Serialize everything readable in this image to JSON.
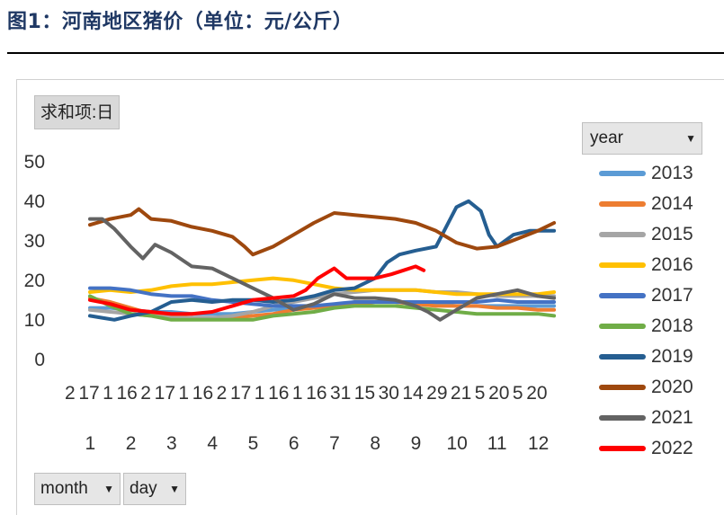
{
  "title": "图1：河南地区猪价（单位：元/公斤）",
  "value_field_button": "求和项:日",
  "year_filter": {
    "label": "year",
    "icon": "dropdown-arrow-icon"
  },
  "month_filter": {
    "label": "month",
    "icon": "dropdown-arrow-icon"
  },
  "day_filter": {
    "label": "day",
    "icon": "dropdown-arrow-icon"
  },
  "chart_data": {
    "type": "line",
    "title": "",
    "xlabel": "",
    "ylabel": "",
    "ylim": [
      0,
      50
    ],
    "y_ticks": [
      "0",
      "10",
      "20",
      "30",
      "40",
      "50"
    ],
    "x_day_labels": [
      "2",
      "17",
      "1",
      "16",
      "2",
      "17",
      "1",
      "16",
      "2",
      "17",
      "1",
      "16",
      "1",
      "16",
      "31",
      "15",
      "30",
      "14",
      "29",
      "21",
      "5",
      "20",
      "5",
      "20"
    ],
    "x_month_labels": [
      "1",
      "2",
      "3",
      "4",
      "5",
      "6",
      "7",
      "8",
      "9",
      "10",
      "11",
      "12"
    ],
    "x_range_months": [
      1,
      12.5
    ],
    "legend_title": "year",
    "legend_position": "right",
    "series": [
      {
        "name": "2013",
        "color": "#5b9bd5",
        "x": [
          1,
          1.5,
          2,
          2.5,
          3,
          3.5,
          4,
          4.5,
          5,
          5.5,
          6,
          6.5,
          7,
          7.5,
          8,
          8.5,
          9,
          9.5,
          10,
          10.5,
          11,
          11.5,
          12,
          12.4
        ],
        "values": [
          13.5,
          13.5,
          13,
          12.5,
          12.5,
          12,
          12,
          12,
          12.5,
          13,
          13.5,
          14,
          14,
          14.5,
          15,
          15,
          14.5,
          14.5,
          14,
          14,
          14,
          14,
          14,
          14
        ]
      },
      {
        "name": "2014",
        "color": "#ed7d31",
        "x": [
          1,
          1.5,
          2,
          2.5,
          3,
          3.5,
          4,
          4.5,
          5,
          5.5,
          6,
          6.5,
          7,
          7.5,
          8,
          8.5,
          9,
          9.5,
          10,
          10.5,
          11,
          11.5,
          12,
          12.4
        ],
        "values": [
          16,
          15,
          13.5,
          12,
          11.5,
          11,
          11,
          11,
          11.5,
          12,
          13,
          13.5,
          14,
          14.5,
          15,
          15,
          14.5,
          14,
          14,
          14,
          13.5,
          13.5,
          13,
          13
        ]
      },
      {
        "name": "2015",
        "color": "#a5a5a5",
        "x": [
          1,
          1.5,
          2,
          2.5,
          3,
          3.5,
          4,
          4.5,
          5,
          5.5,
          6,
          6.5,
          7,
          7.5,
          8,
          8.5,
          9,
          9.5,
          10,
          10.5,
          11,
          11.5,
          12,
          12.4
        ],
        "values": [
          13,
          12.5,
          12,
          11.5,
          11,
          11,
          11,
          11.5,
          12.5,
          14,
          15,
          16,
          17,
          17.5,
          18,
          18,
          18,
          17.5,
          17.5,
          17,
          16.5,
          16.5,
          16.5,
          16.5
        ]
      },
      {
        "name": "2016",
        "color": "#ffc000",
        "x": [
          1,
          1.5,
          2,
          2.5,
          3,
          3.5,
          4,
          4.5,
          5,
          5.5,
          6,
          6.5,
          7,
          7.5,
          8,
          8.5,
          9,
          9.5,
          10,
          10.5,
          11,
          11.5,
          12,
          12.4
        ],
        "values": [
          17.5,
          18,
          17.5,
          18,
          19,
          19.5,
          19.5,
          20,
          20.5,
          21,
          20.5,
          19.5,
          18.5,
          18,
          18,
          18,
          18,
          17.5,
          17,
          17,
          17,
          17,
          17,
          17.5
        ]
      },
      {
        "name": "2017",
        "color": "#4472c4",
        "x": [
          1,
          1.5,
          2,
          2.5,
          3,
          3.5,
          4,
          4.5,
          5,
          5.5,
          6,
          6.5,
          7,
          7.5,
          8,
          8.5,
          9,
          9.5,
          10,
          10.5,
          11,
          11.5,
          12,
          12.4
        ],
        "values": [
          18.5,
          18.5,
          18,
          17,
          16.5,
          16.5,
          15.5,
          15,
          14.5,
          14,
          14,
          14,
          14.5,
          15,
          15,
          15,
          15,
          15,
          15,
          15,
          15.5,
          15,
          15,
          15
        ]
      },
      {
        "name": "2018",
        "color": "#70ad47",
        "x": [
          1,
          1.5,
          2,
          2.5,
          3,
          3.5,
          4,
          4.5,
          5,
          5.5,
          6,
          6.5,
          7,
          7.5,
          8,
          8.5,
          9,
          9.5,
          10,
          10.5,
          11,
          11.5,
          12,
          12.4
        ],
        "values": [
          16.5,
          14,
          12,
          11.5,
          10.5,
          10.5,
          10.5,
          10.5,
          10.5,
          11.5,
          12,
          12.5,
          13.5,
          14,
          14,
          14,
          13.5,
          13,
          12.5,
          12,
          12,
          12,
          12,
          11.5
        ]
      },
      {
        "name": "2019",
        "color": "#255e91",
        "x": [
          1,
          1.3,
          1.6,
          2,
          2.5,
          3,
          3.5,
          4,
          4.5,
          5,
          5.5,
          6,
          6.5,
          7,
          7.5,
          8,
          8.3,
          8.6,
          9,
          9.5,
          9.8,
          10,
          10.3,
          10.6,
          10.8,
          11,
          11.4,
          11.8,
          12,
          12.4
        ],
        "values": [
          11.5,
          11,
          10.5,
          11.5,
          12.5,
          15,
          15.5,
          15,
          15.5,
          15.5,
          15,
          15.5,
          16.5,
          18,
          18.5,
          21,
          25,
          27,
          28,
          29,
          35,
          39,
          40.5,
          38,
          32,
          29,
          32,
          33,
          33,
          33
        ]
      },
      {
        "name": "2020",
        "color": "#9e480e",
        "x": [
          1,
          1.5,
          2,
          2.2,
          2.5,
          3,
          3.5,
          4,
          4.5,
          4.8,
          5,
          5.5,
          6,
          6.5,
          7,
          7.5,
          8,
          8.5,
          9,
          9.5,
          10,
          10.5,
          11,
          11.5,
          12,
          12.4
        ],
        "values": [
          34.5,
          36,
          37,
          38.5,
          36,
          35.5,
          34,
          33,
          31.5,
          29,
          27,
          29,
          32,
          35,
          37.5,
          37,
          36.5,
          36,
          35,
          33,
          30,
          28.5,
          29,
          31,
          33,
          35
        ]
      },
      {
        "name": "2021",
        "color": "#636363",
        "x": [
          1,
          1.3,
          1.6,
          2,
          2.3,
          2.6,
          3,
          3.5,
          4,
          4.5,
          5,
          5.5,
          6,
          6.5,
          7,
          7.5,
          8,
          8.5,
          9,
          9.3,
          9.6,
          10,
          10.5,
          11,
          11.5,
          12,
          12.4
        ],
        "values": [
          36,
          36,
          33.5,
          29,
          26,
          29.5,
          27.5,
          24,
          23.5,
          21,
          18.5,
          16,
          13,
          14.5,
          17,
          16,
          16,
          15.5,
          14,
          12.5,
          10.5,
          13,
          16,
          17,
          18,
          16.5,
          16
        ]
      },
      {
        "name": "2022",
        "color": "#ff0000",
        "x": [
          1,
          1.5,
          2,
          2.5,
          3,
          3.5,
          4,
          4.5,
          5,
          5.5,
          6,
          6.3,
          6.6,
          7,
          7.3,
          7.6,
          8,
          8.4,
          8.7,
          9,
          9.2
        ],
        "values": [
          15.5,
          14.5,
          13,
          12.5,
          12,
          12,
          12.5,
          14,
          15.5,
          16,
          16.5,
          18,
          21,
          23.5,
          21,
          21,
          21,
          22,
          23,
          24,
          23
        ]
      }
    ]
  }
}
